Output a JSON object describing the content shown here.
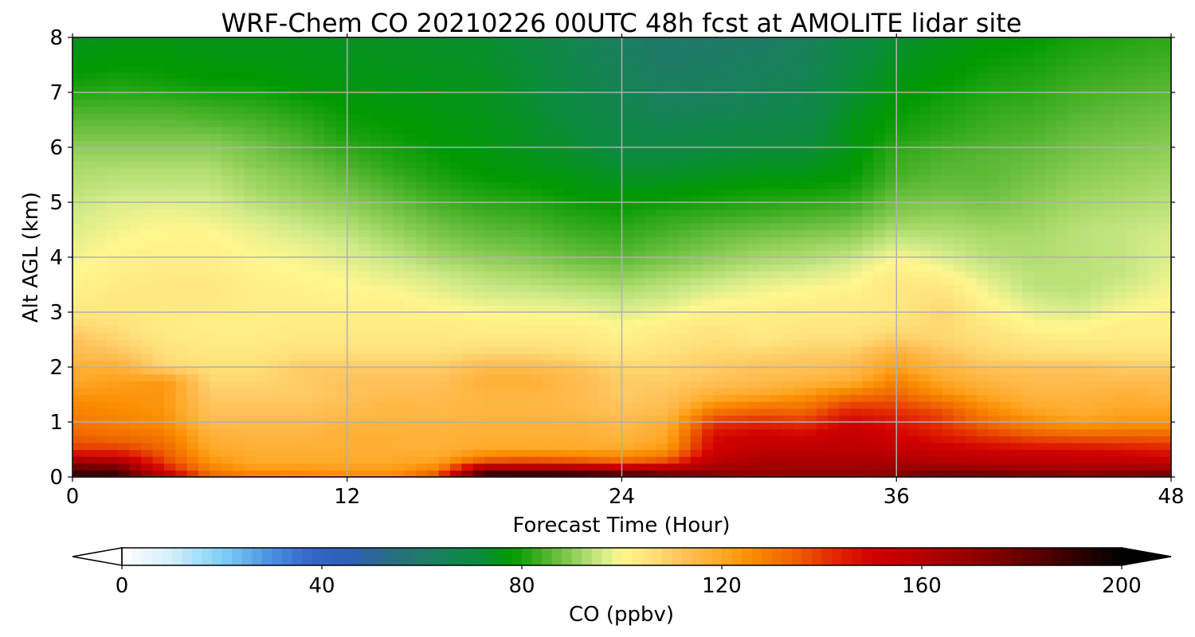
{
  "chart_data": {
    "type": "heatmap",
    "title": "WRF-Chem CO  20210226 00UTC 48h fcst at AMOLITE lidar site",
    "xlabel": "Forecast Time (Hour)",
    "ylabel": "Alt AGL (km)",
    "xlim": [
      0,
      48
    ],
    "ylim": [
      0,
      8
    ],
    "xticks": [
      0,
      12,
      24,
      36,
      48
    ],
    "yticks": [
      0,
      1,
      2,
      3,
      4,
      5,
      6,
      7,
      8
    ],
    "grid": true,
    "colorbar": {
      "label": "CO  (ppbv)",
      "ticks": [
        0,
        40,
        80,
        120,
        160,
        200
      ],
      "range": [
        0,
        200
      ],
      "extend": "both",
      "placement": "bottom"
    },
    "colormap": [
      [
        0,
        "#ffffff"
      ],
      [
        10,
        "#d2eefb"
      ],
      [
        20,
        "#7fd0f7"
      ],
      [
        30,
        "#4a8fe0"
      ],
      [
        38,
        "#3465c8"
      ],
      [
        46,
        "#2f5fb5"
      ],
      [
        55,
        "#27707d"
      ],
      [
        63,
        "#1a7f5e"
      ],
      [
        72,
        "#0a8c3a"
      ],
      [
        78,
        "#009900"
      ],
      [
        84,
        "#44b026"
      ],
      [
        90,
        "#8ccd55"
      ],
      [
        96,
        "#d1eb88"
      ],
      [
        100,
        "#fff68f"
      ],
      [
        106,
        "#ffe07a"
      ],
      [
        112,
        "#ffc25a"
      ],
      [
        120,
        "#ffa928"
      ],
      [
        126,
        "#fb8c00"
      ],
      [
        134,
        "#ef6400"
      ],
      [
        142,
        "#e32a00"
      ],
      [
        150,
        "#d10000"
      ],
      [
        160,
        "#b60000"
      ],
      [
        172,
        "#8a0000"
      ],
      [
        184,
        "#550000"
      ],
      [
        192,
        "#2a0000"
      ],
      [
        200,
        "#000000"
      ]
    ],
    "x": [
      0,
      2,
      4,
      6,
      8,
      10,
      12,
      14,
      16,
      18,
      20,
      22,
      24,
      26,
      28,
      30,
      32,
      34,
      36,
      38,
      40,
      42,
      44,
      46,
      48
    ],
    "y": [
      0,
      0.1,
      0.25,
      0.5,
      0.75,
      1.0,
      1.25,
      1.5,
      1.75,
      2.0,
      2.25,
      2.5,
      2.75,
      3.0,
      3.25,
      3.5,
      3.75,
      4.0,
      4.25,
      4.5,
      4.75,
      5.0,
      5.25,
      5.5,
      5.75,
      6.0,
      6.25,
      6.5,
      6.75,
      7.0,
      7.25,
      7.5,
      7.75,
      8.0
    ],
    "values": [
      [
        190,
        190,
        160,
        135,
        130,
        128,
        126,
        126,
        140,
        192,
        194,
        190,
        185,
        180,
        178,
        178,
        178,
        178,
        180,
        185,
        184,
        182,
        180,
        182,
        184
      ],
      [
        188,
        188,
        150,
        130,
        125,
        125,
        124,
        124,
        132,
        186,
        186,
        184,
        180,
        175,
        170,
        165,
        166,
        166,
        168,
        174,
        172,
        170,
        168,
        170,
        172
      ],
      [
        170,
        165,
        140,
        125,
        120,
        120,
        120,
        120,
        122,
        140,
        142,
        140,
        136,
        140,
        160,
        165,
        165,
        165,
        165,
        162,
        160,
        160,
        158,
        158,
        156
      ],
      [
        140,
        140,
        134,
        120,
        118,
        118,
        118,
        118,
        118,
        120,
        120,
        120,
        120,
        124,
        150,
        156,
        158,
        158,
        156,
        152,
        150,
        148,
        148,
        146,
        144
      ],
      [
        134,
        132,
        130,
        118,
        116,
        116,
        118,
        118,
        117,
        118,
        118,
        118,
        116,
        120,
        148,
        152,
        150,
        155,
        150,
        145,
        140,
        136,
        134,
        134,
        134
      ],
      [
        130,
        128,
        126,
        114,
        114,
        114,
        116,
        116,
        116,
        117,
        117,
        117,
        114,
        118,
        140,
        142,
        140,
        150,
        146,
        140,
        132,
        126,
        122,
        124,
        124
      ],
      [
        128,
        126,
        124,
        112,
        112,
        112,
        114,
        116,
        115,
        116,
        116,
        115,
        112,
        114,
        128,
        132,
        132,
        142,
        140,
        136,
        126,
        120,
        118,
        120,
        120
      ],
      [
        124,
        124,
        124,
        110,
        110,
        110,
        112,
        114,
        114,
        116,
        116,
        114,
        110,
        112,
        118,
        120,
        124,
        130,
        134,
        126,
        120,
        116,
        116,
        118,
        116
      ],
      [
        120,
        122,
        124,
        108,
        108,
        110,
        112,
        112,
        112,
        118,
        118,
        114,
        110,
        110,
        112,
        114,
        116,
        118,
        128,
        120,
        116,
        114,
        114,
        114,
        114
      ],
      [
        118,
        118,
        108,
        106,
        106,
        110,
        110,
        110,
        110,
        114,
        114,
        112,
        108,
        108,
        110,
        112,
        112,
        114,
        122,
        116,
        112,
        112,
        112,
        110,
        110
      ],
      [
        114,
        112,
        106,
        104,
        104,
        106,
        106,
        106,
        106,
        108,
        108,
        106,
        104,
        106,
        108,
        108,
        110,
        110,
        118,
        112,
        108,
        106,
        106,
        106,
        106
      ],
      [
        112,
        108,
        104,
        103,
        103,
        104,
        104,
        104,
        104,
        104,
        104,
        104,
        102,
        104,
        106,
        104,
        106,
        106,
        110,
        108,
        106,
        104,
        103,
        103,
        103
      ],
      [
        108,
        106,
        103,
        102,
        102,
        103,
        103,
        103,
        103,
        102,
        102,
        102,
        100,
        102,
        104,
        103,
        104,
        104,
        106,
        108,
        104,
        100,
        100,
        102,
        102
      ],
      [
        104,
        104,
        103,
        103,
        102,
        102,
        102,
        102,
        101,
        100,
        99,
        99,
        97,
        99,
        102,
        102,
        103,
        103,
        104,
        108,
        102,
        98,
        97,
        100,
        101
      ],
      [
        102,
        104,
        104,
        104,
        102,
        102,
        101,
        101,
        99,
        97,
        97,
        96,
        95,
        96,
        99,
        100,
        101,
        102,
        104,
        106,
        100,
        96,
        95,
        98,
        100
      ],
      [
        101,
        103,
        104,
        104,
        102,
        101,
        100,
        99,
        97,
        95,
        94,
        93,
        92,
        94,
        96,
        98,
        99,
        100,
        104,
        104,
        98,
        94,
        94,
        96,
        99
      ],
      [
        100,
        102,
        103,
        103,
        101,
        100,
        99,
        97,
        95,
        93,
        92,
        90,
        89,
        91,
        93,
        95,
        96,
        98,
        102,
        100,
        96,
        94,
        94,
        95,
        98
      ],
      [
        99,
        101,
        102,
        102,
        100,
        99,
        97,
        95,
        92,
        90,
        89,
        87,
        86,
        88,
        90,
        92,
        93,
        95,
        100,
        97,
        94,
        93,
        94,
        95,
        97
      ],
      [
        98,
        100,
        101,
        101,
        99,
        98,
        96,
        93,
        90,
        88,
        87,
        85,
        84,
        86,
        88,
        90,
        91,
        92,
        96,
        95,
        93,
        93,
        94,
        95,
        97
      ],
      [
        97,
        99,
        100,
        100,
        98,
        96,
        94,
        91,
        88,
        86,
        85,
        83,
        82,
        84,
        86,
        87,
        88,
        89,
        93,
        93,
        92,
        92,
        94,
        95,
        96
      ],
      [
        96,
        98,
        99,
        98,
        96,
        94,
        92,
        89,
        86,
        84,
        83,
        81,
        80,
        82,
        83,
        84,
        85,
        86,
        90,
        91,
        90,
        91,
        93,
        94,
        95
      ],
      [
        95,
        97,
        97,
        97,
        94,
        92,
        90,
        87,
        84,
        82,
        81,
        79,
        78,
        79,
        80,
        81,
        82,
        83,
        88,
        89,
        88,
        90,
        92,
        93,
        94
      ],
      [
        94,
        95,
        95,
        95,
        92,
        90,
        88,
        85,
        82,
        80,
        79,
        77,
        76,
        77,
        78,
        79,
        79,
        80,
        86,
        87,
        87,
        89,
        91,
        92,
        93
      ],
      [
        93,
        94,
        94,
        94,
        91,
        89,
        86,
        83,
        80,
        78,
        77,
        76,
        74,
        74,
        75,
        76,
        76,
        78,
        84,
        86,
        86,
        88,
        90,
        91,
        92
      ],
      [
        92,
        92,
        92,
        92,
        89,
        87,
        84,
        81,
        79,
        77,
        76,
        74,
        72,
        72,
        73,
        74,
        74,
        77,
        83,
        85,
        86,
        87,
        89,
        90,
        91
      ],
      [
        90,
        90,
        90,
        90,
        88,
        85,
        82,
        80,
        78,
        77,
        75,
        73,
        70,
        70,
        71,
        72,
        72,
        76,
        82,
        84,
        85,
        86,
        88,
        89,
        90
      ],
      [
        88,
        88,
        88,
        88,
        86,
        84,
        80,
        79,
        77,
        76,
        74,
        72,
        69,
        68,
        69,
        70,
        70,
        76,
        80,
        82,
        84,
        85,
        87,
        88,
        89
      ],
      [
        86,
        86,
        86,
        85,
        84,
        82,
        79,
        78,
        77,
        76,
        74,
        71,
        68,
        66,
        67,
        68,
        69,
        75,
        79,
        81,
        83,
        84,
        86,
        87,
        88
      ],
      [
        84,
        84,
        84,
        83,
        82,
        80,
        78,
        77,
        76,
        75,
        73,
        70,
        67,
        64,
        65,
        66,
        68,
        74,
        78,
        80,
        82,
        83,
        85,
        86,
        87
      ],
      [
        81,
        82,
        81,
        80,
        80,
        78,
        77,
        76,
        76,
        75,
        73,
        69,
        66,
        63,
        64,
        65,
        67,
        73,
        77,
        79,
        81,
        82,
        84,
        85,
        86
      ],
      [
        79,
        80,
        79,
        78,
        78,
        77,
        76,
        76,
        75,
        75,
        72,
        68,
        65,
        62,
        63,
        64,
        66,
        72,
        76,
        78,
        80,
        81,
        83,
        84,
        85
      ],
      [
        77,
        78,
        78,
        77,
        77,
        76,
        76,
        75,
        75,
        74,
        72,
        68,
        64,
        61,
        62,
        63,
        65,
        71,
        75,
        77,
        79,
        80,
        82,
        83,
        84
      ],
      [
        76,
        77,
        77,
        76,
        76,
        76,
        75,
        75,
        74,
        74,
        71,
        67,
        63,
        60,
        61,
        62,
        64,
        70,
        74,
        76,
        78,
        79,
        81,
        82,
        83
      ],
      [
        75,
        76,
        76,
        76,
        76,
        75,
        75,
        74,
        74,
        73,
        71,
        67,
        63,
        60,
        60,
        61,
        63,
        69,
        73,
        75,
        77,
        78,
        80,
        81,
        82
      ]
    ]
  }
}
